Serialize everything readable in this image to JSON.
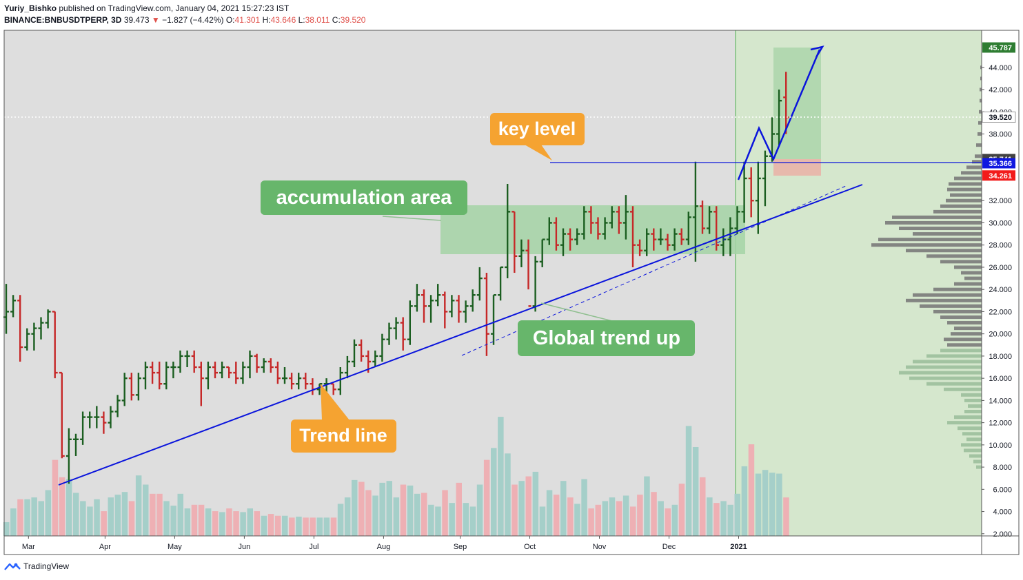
{
  "header": {
    "author": "Yuriy_Bishko",
    "published": "published on TradingView.com, January 04, 2021 15:27:23 IST",
    "symbol": "BINANCE:BNBUSDTPERP, 3D",
    "last": "39.473",
    "change_arrow": "▼",
    "change": "−1.827 (−4.42%)",
    "o_label": "O:",
    "o_value": "41.301",
    "h_label": "H:",
    "h_value": "43.646",
    "l_label": "L:",
    "l_value": "38.011",
    "c_label": "C:",
    "c_value": "39.520"
  },
  "footer": {
    "brand": "TradingView",
    "logo_icon": "tradingview-logo-icon"
  },
  "colors": {
    "up": "#1b5e20",
    "down": "#c62828",
    "vol_up": "#a5cfc9",
    "vol_down": "#eeb0b4",
    "trend": "#0a14dc",
    "chart_bg": "#dedede",
    "future_bg": "#d5e7cd",
    "accumulation": "#a5d3a6",
    "label_orange": "#f5a331",
    "label_green": "#67b66b"
  },
  "chart_data": {
    "type": "ohlc",
    "ylim": [
      1.0,
      48.0
    ],
    "y_ticks": [
      "2.000",
      "4.000",
      "6.000",
      "8.000",
      "10.000",
      "12.000",
      "14.000",
      "16.000",
      "18.000",
      "20.000",
      "22.000",
      "24.000",
      "26.000",
      "28.000",
      "30.000",
      "32.000",
      "38.000",
      "40.000",
      "42.000",
      "44.000"
    ],
    "x_ticks": [
      {
        "label": "Mar",
        "bar": 3
      },
      {
        "label": "Apr",
        "bar": 14
      },
      {
        "label": "May",
        "bar": 24
      },
      {
        "label": "Jun",
        "bar": 34
      },
      {
        "label": "Jul",
        "bar": 44
      },
      {
        "label": "Aug",
        "bar": 54
      },
      {
        "label": "Sep",
        "bar": 65
      },
      {
        "label": "Oct",
        "bar": 75
      },
      {
        "label": "Nov",
        "bar": 85
      },
      {
        "label": "Dec",
        "bar": 95
      },
      {
        "label": "2021",
        "bar": 105
      }
    ],
    "price_tags": [
      {
        "label": "45.787",
        "value": 45.787,
        "color": "#2e7d32"
      },
      {
        "label": "39.520",
        "value": 39.52,
        "color": "#ffffff"
      },
      {
        "label": "35.741",
        "value": 35.741,
        "color": "#424242"
      },
      {
        "label": "35.366",
        "value": 35.366,
        "color": "#1018e0"
      },
      {
        "label": "34.261",
        "value": 34.261,
        "color": "#f21b1b"
      }
    ],
    "bars": [
      [
        21.5,
        24.5,
        20.0,
        22.0,
        1.5
      ],
      [
        22.0,
        23.5,
        21.5,
        23.0,
        3.0
      ],
      [
        23.0,
        23.5,
        17.5,
        18.8,
        4.0
      ],
      [
        18.8,
        20.5,
        18.5,
        20.0,
        4.0
      ],
      [
        20.0,
        21.0,
        18.5,
        20.5,
        4.2
      ],
      [
        20.5,
        21.5,
        19.5,
        21.0,
        3.8
      ],
      [
        21.0,
        22.2,
        20.5,
        22.0,
        5.0
      ],
      [
        22.0,
        22.0,
        16.0,
        16.5,
        8.3
      ],
      [
        16.5,
        16.5,
        8.8,
        9.0,
        6.4
      ],
      [
        9.0,
        11.5,
        6.5,
        10.5,
        6.2
      ],
      [
        10.5,
        11.0,
        9.0,
        10.5,
        4.7
      ],
      [
        10.5,
        13.0,
        10.0,
        12.5,
        3.8
      ],
      [
        12.5,
        13.0,
        11.5,
        12.5,
        3.2
      ],
      [
        12.5,
        13.5,
        11.5,
        12.5,
        4.0
      ],
      [
        12.5,
        13.0,
        11.0,
        12.0,
        2.7
      ],
      [
        12.0,
        13.5,
        11.5,
        13.0,
        4.2
      ],
      [
        13.0,
        14.5,
        12.5,
        14.0,
        4.5
      ],
      [
        14.0,
        16.5,
        13.5,
        16.0,
        4.8
      ],
      [
        16.0,
        16.5,
        14.0,
        14.5,
        3.8
      ],
      [
        14.5,
        16.5,
        14.0,
        16.0,
        6.6
      ],
      [
        16.0,
        17.5,
        15.0,
        17.0,
        5.6
      ],
      [
        17.0,
        17.5,
        15.5,
        16.5,
        4.6
      ],
      [
        16.5,
        17.5,
        15.0,
        15.5,
        4.6
      ],
      [
        15.5,
        17.5,
        15.0,
        17.0,
        3.8
      ],
      [
        17.0,
        17.5,
        16.0,
        17.0,
        3.3
      ],
      [
        17.0,
        18.5,
        16.5,
        18.0,
        4.6
      ],
      [
        18.0,
        18.5,
        17.0,
        18.0,
        3.0
      ],
      [
        18.0,
        18.5,
        16.5,
        17.0,
        3.4
      ],
      [
        17.0,
        17.5,
        13.5,
        16.0,
        3.4
      ],
      [
        16.0,
        17.5,
        15.0,
        17.0,
        3.0
      ],
      [
        17.0,
        17.5,
        16.0,
        16.5,
        2.7
      ],
      [
        16.5,
        17.5,
        16.0,
        17.0,
        2.6
      ],
      [
        17.0,
        17.0,
        16.0,
        16.5,
        3.0
      ],
      [
        16.5,
        17.5,
        15.5,
        16.0,
        2.7
      ],
      [
        16.0,
        17.5,
        15.5,
        17.0,
        2.6
      ],
      [
        17.0,
        18.5,
        16.0,
        18.0,
        3.0
      ],
      [
        18.0,
        18.2,
        16.5,
        17.0,
        2.7
      ],
      [
        17.0,
        17.8,
        16.5,
        17.5,
        2.2
      ],
      [
        17.5,
        17.8,
        16.5,
        17.0,
        2.4
      ],
      [
        17.0,
        17.5,
        15.5,
        16.0,
        2.2
      ],
      [
        16.0,
        17.0,
        15.5,
        16.0,
        2.2
      ],
      [
        16.0,
        16.5,
        15.0,
        15.5,
        2.0
      ],
      [
        15.5,
        16.5,
        15.0,
        16.0,
        2.1
      ],
      [
        16.0,
        16.5,
        15.0,
        15.5,
        2.0
      ],
      [
        15.5,
        16.0,
        14.5,
        15.0,
        2.0
      ],
      [
        15.0,
        15.5,
        14.5,
        15.5,
        2.0
      ],
      [
        15.5,
        16.0,
        14.5,
        15.5,
        2.0
      ],
      [
        15.5,
        15.5,
        14.5,
        15.0,
        2.0
      ],
      [
        15.0,
        17.0,
        14.5,
        16.5,
        3.5
      ],
      [
        16.5,
        18.0,
        16.0,
        17.5,
        4.2
      ],
      [
        17.5,
        19.5,
        17.0,
        19.0,
        6.1
      ],
      [
        19.0,
        19.5,
        17.5,
        18.0,
        5.9
      ],
      [
        18.0,
        18.5,
        16.5,
        17.5,
        5.0
      ],
      [
        17.5,
        18.5,
        17.0,
        18.0,
        4.4
      ],
      [
        18.0,
        20.0,
        17.5,
        19.5,
        5.8
      ],
      [
        19.5,
        21.0,
        19.0,
        20.5,
        6.0
      ],
      [
        20.5,
        21.5,
        19.5,
        21.0,
        4.2
      ],
      [
        21.0,
        21.5,
        18.5,
        19.5,
        5.6
      ],
      [
        19.5,
        23.0,
        19.0,
        22.5,
        5.5
      ],
      [
        22.5,
        24.5,
        22.0,
        23.5,
        4.6
      ],
      [
        23.5,
        24.0,
        21.0,
        22.5,
        4.7
      ],
      [
        22.5,
        23.5,
        21.0,
        23.0,
        3.4
      ],
      [
        23.0,
        24.5,
        22.5,
        23.5,
        3.2
      ],
      [
        23.5,
        23.8,
        20.5,
        22.0,
        5.0
      ],
      [
        22.0,
        23.5,
        21.5,
        23.0,
        3.6
      ],
      [
        23.0,
        23.5,
        21.0,
        22.0,
        5.8
      ],
      [
        22.0,
        23.0,
        21.0,
        22.5,
        3.6
      ],
      [
        22.5,
        24.0,
        22.0,
        23.5,
        3.2
      ],
      [
        23.5,
        26.0,
        23.0,
        25.0,
        5.6
      ],
      [
        25.0,
        25.5,
        18.0,
        20.0,
        8.3
      ],
      [
        20.0,
        23.5,
        19.0,
        23.5,
        9.6
      ],
      [
        23.5,
        26.0,
        23.0,
        26.0,
        13.0
      ],
      [
        26.0,
        33.5,
        25.0,
        31.0,
        9.0
      ],
      [
        31.0,
        31.0,
        25.5,
        27.0,
        5.6
      ],
      [
        27.0,
        28.5,
        26.0,
        27.5,
        6.0
      ],
      [
        27.5,
        28.5,
        24.0,
        22.5,
        6.5
      ],
      [
        22.5,
        27.0,
        22.0,
        26.5,
        7.0
      ],
      [
        26.5,
        28.5,
        26.0,
        28.5,
        3.2
      ],
      [
        28.5,
        30.5,
        28.0,
        30.0,
        5.0
      ],
      [
        30.0,
        30.5,
        27.5,
        28.0,
        4.5
      ],
      [
        28.0,
        29.5,
        27.0,
        29.0,
        6.0
      ],
      [
        29.0,
        29.5,
        27.5,
        28.5,
        4.2
      ],
      [
        28.5,
        29.5,
        28.0,
        29.0,
        3.5
      ],
      [
        29.0,
        31.5,
        28.5,
        31.0,
        6.2
      ],
      [
        31.0,
        31.5,
        29.0,
        30.0,
        3.0
      ],
      [
        30.0,
        30.5,
        28.5,
        29.0,
        3.4
      ],
      [
        29.0,
        30.5,
        28.5,
        30.0,
        3.8
      ],
      [
        30.0,
        31.5,
        29.5,
        31.0,
        4.2
      ],
      [
        31.0,
        31.5,
        29.0,
        30.0,
        3.8
      ],
      [
        30.0,
        32.5,
        28.5,
        31.0,
        4.4
      ],
      [
        31.0,
        31.5,
        26.0,
        28.0,
        3.2
      ],
      [
        28.0,
        28.5,
        27.0,
        27.5,
        4.5
      ],
      [
        27.5,
        29.5,
        27.0,
        29.0,
        6.5
      ],
      [
        29.0,
        29.5,
        27.5,
        28.5,
        4.8
      ],
      [
        28.5,
        29.5,
        28.0,
        28.5,
        3.8
      ],
      [
        28.5,
        29.0,
        27.5,
        28.0,
        3.0
      ],
      [
        28.0,
        29.5,
        27.5,
        29.0,
        3.4
      ],
      [
        29.0,
        29.5,
        28.0,
        28.5,
        5.7
      ],
      [
        28.5,
        31.0,
        28.0,
        30.5,
        12.0
      ],
      [
        30.5,
        35.5,
        26.5,
        31.5,
        9.7
      ],
      [
        31.5,
        32.0,
        29.0,
        29.5,
        6.4
      ],
      [
        29.5,
        31.5,
        29.0,
        31.0,
        4.2
      ],
      [
        31.0,
        31.5,
        27.5,
        28.0,
        3.6
      ],
      [
        28.0,
        29.5,
        27.0,
        28.5,
        3.8
      ],
      [
        28.5,
        30.5,
        27.0,
        29.5,
        3.4
      ],
      [
        29.5,
        31.5,
        29.0,
        31.0,
        4.6
      ],
      [
        31.0,
        35.5,
        30.0,
        34.0,
        7.6
      ],
      [
        34.0,
        35.0,
        30.5,
        32.0,
        10.0
      ],
      [
        32.0,
        35.5,
        29.0,
        34.0,
        6.8
      ],
      [
        34.0,
        36.5,
        31.5,
        36.0,
        7.2
      ],
      [
        36.0,
        39.5,
        35.5,
        38.0,
        6.9
      ],
      [
        38.0,
        42.0,
        37.0,
        41.0,
        6.8
      ],
      [
        41.3,
        43.6,
        38.0,
        39.5,
        4.2
      ]
    ]
  },
  "annotations": {
    "key_level": "key level",
    "accumulation": "accumulation area",
    "trend_line": "Trend line",
    "global_trend": "Global trend up"
  }
}
